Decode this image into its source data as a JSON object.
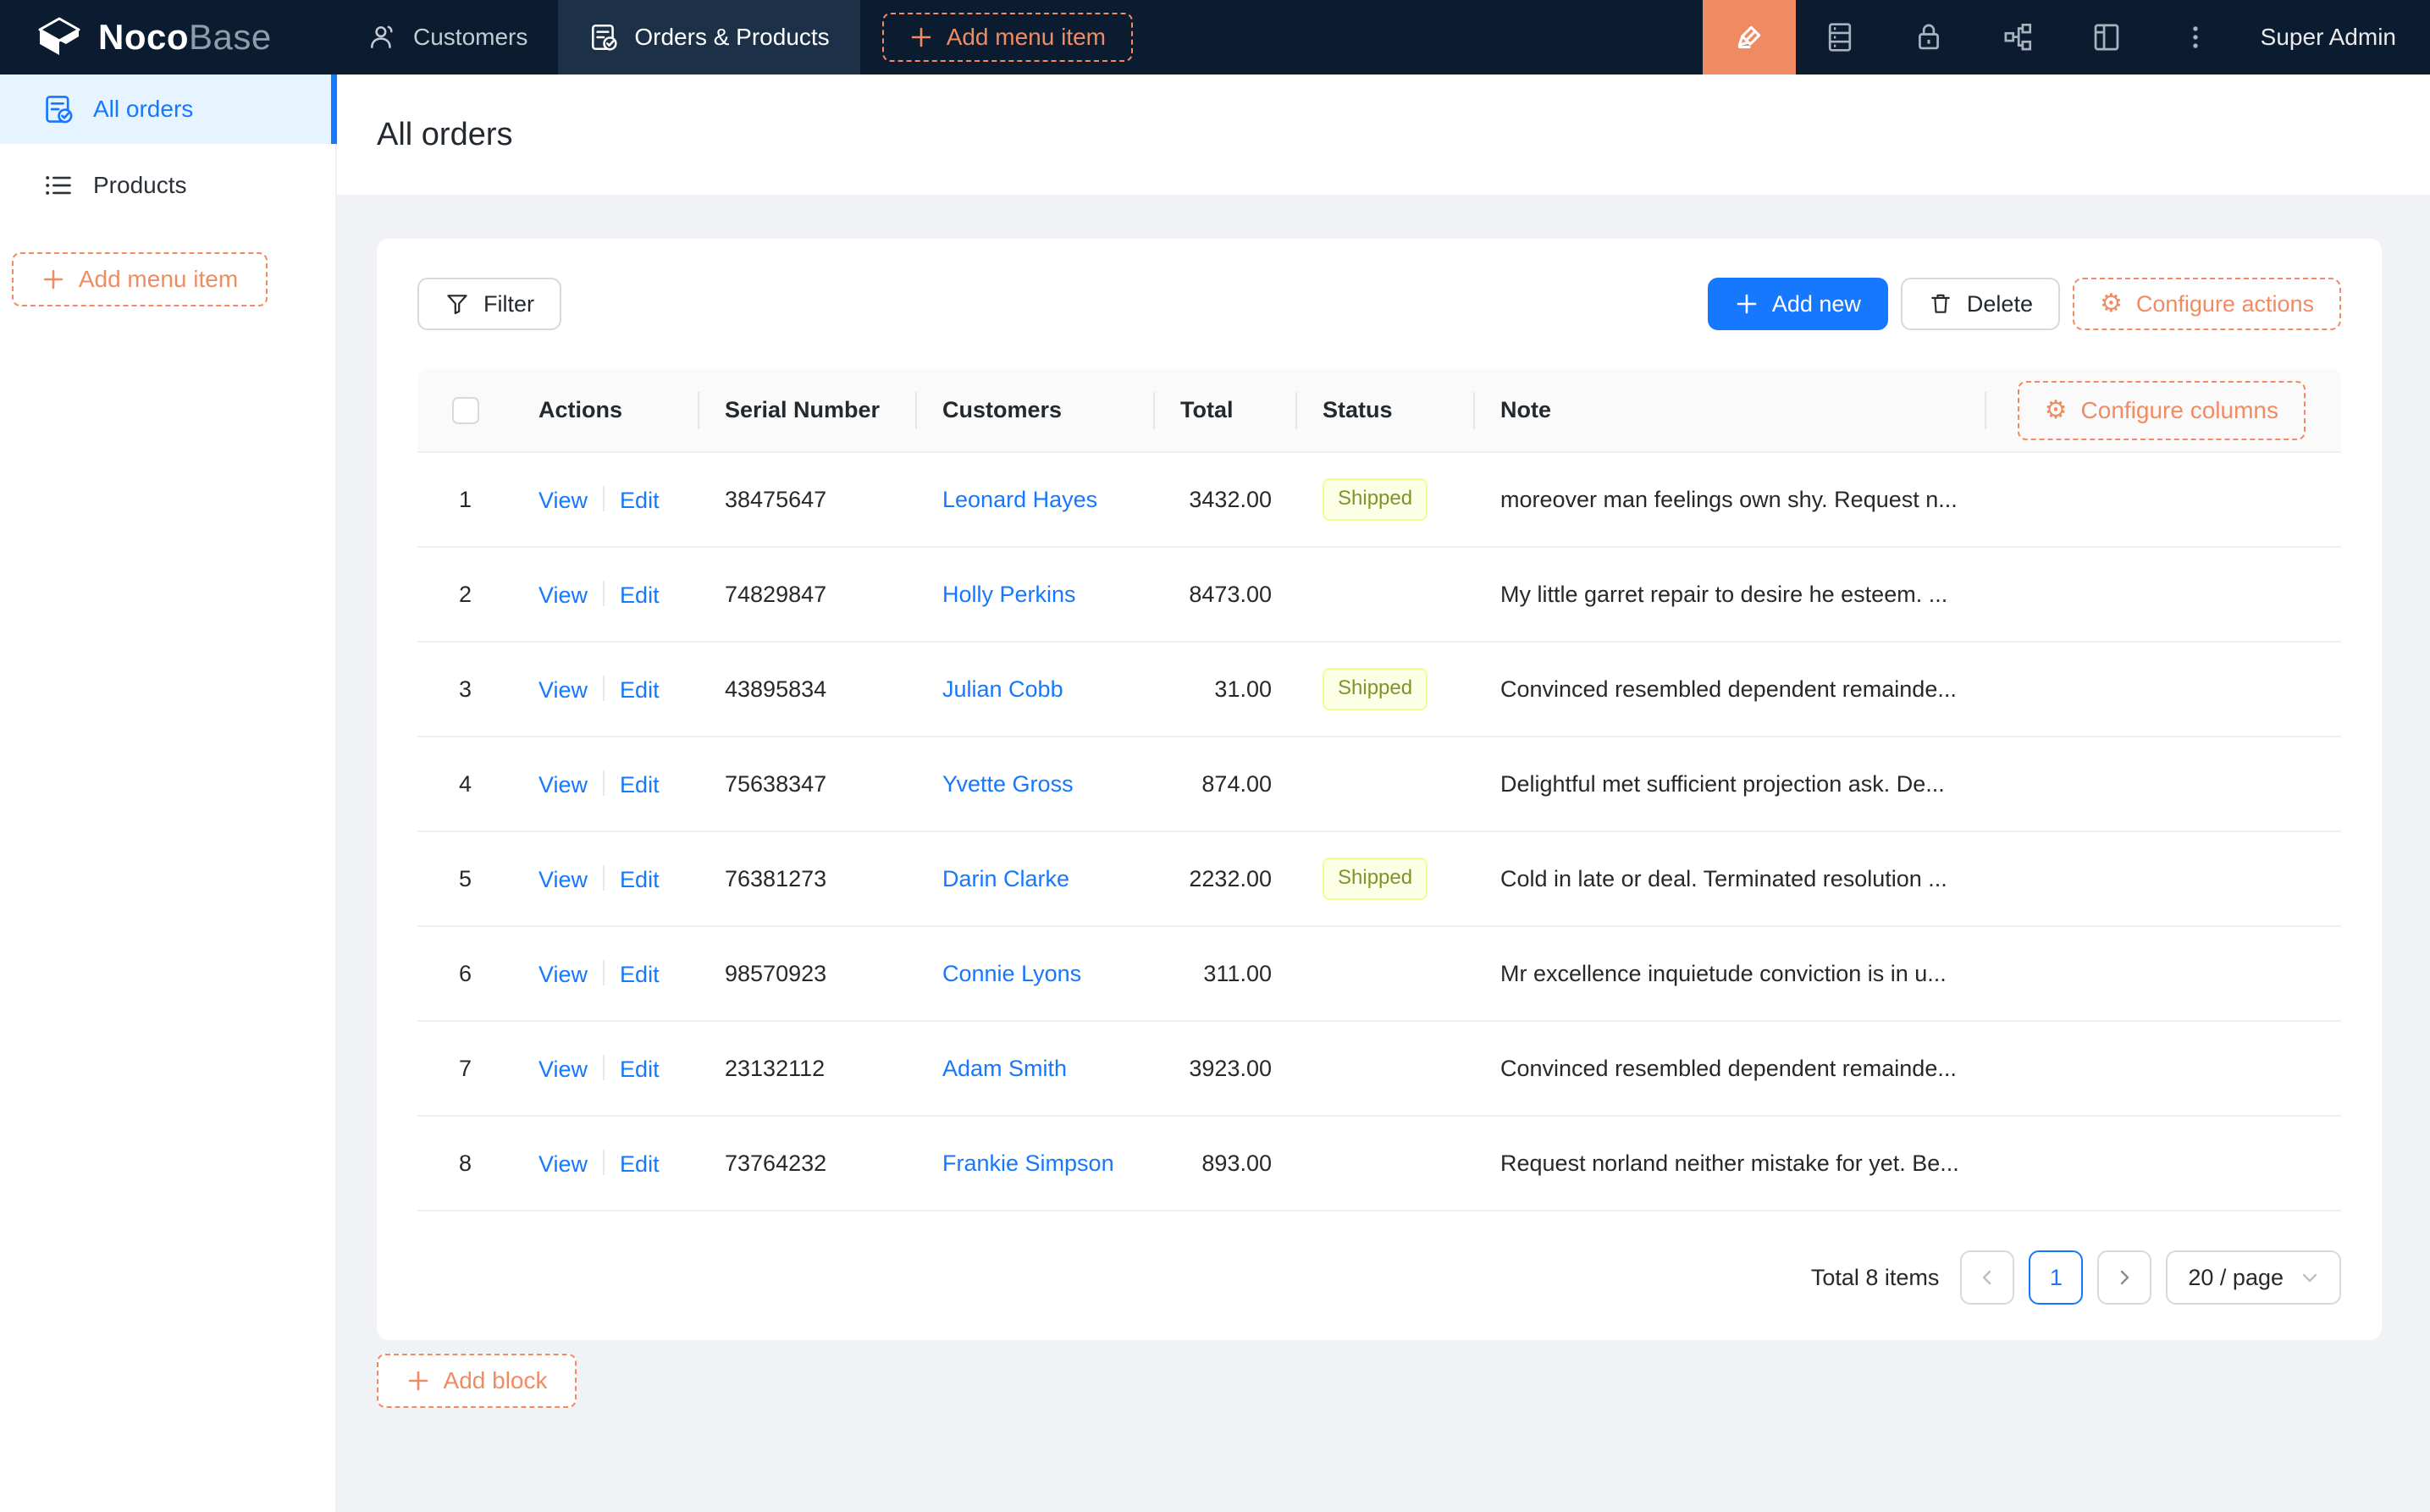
{
  "colors": {
    "navy": "#0b1c30",
    "accent_orange": "#f18b62",
    "pen_block": "#ef8a62",
    "blue": "#1677ff",
    "sidebar_active_bg": "#e6f4ff",
    "content_bg": "#f0f2f5",
    "shipped_bg": "#fcffe6",
    "shipped_border": "#eaff8f",
    "shipped_text": "#7f942c"
  },
  "navbar": {
    "logo_bold": "Noco",
    "logo_light": "Base",
    "tabs": [
      {
        "label": "Customers",
        "icon": "users-icon",
        "active": false
      },
      {
        "label": "Orders & Products",
        "icon": "form-check-icon",
        "active": true
      }
    ],
    "add_menu_item_label": "Add menu item",
    "right_icons": [
      "ui-editor-pen-icon",
      "collections-icon",
      "lock-icon",
      "plugins-icon",
      "layout-icon",
      "more-ellipsis-icon"
    ],
    "user_label": "Super Admin"
  },
  "sidebar": {
    "items": [
      {
        "label": "All orders",
        "icon": "form-check-icon",
        "active": true
      },
      {
        "label": "Products",
        "icon": "list-icon",
        "active": false
      }
    ],
    "add_menu_item_label": "Add menu item"
  },
  "page": {
    "title": "All orders"
  },
  "toolbar": {
    "filter_label": "Filter",
    "add_new_label": "Add new",
    "delete_label": "Delete",
    "configure_actions_label": "Configure actions"
  },
  "table": {
    "configure_columns_label": "Configure columns",
    "columns": [
      "Actions",
      "Serial Number",
      "Customers",
      "Total",
      "Status",
      "Note"
    ],
    "view_label": "View",
    "edit_label": "Edit",
    "rows": [
      {
        "index": 1,
        "serial": "38475647",
        "customer": "Leonard Hayes",
        "total": "3432.00",
        "status": "Shipped",
        "note": "moreover man feelings own shy. Request n..."
      },
      {
        "index": 2,
        "serial": "74829847",
        "customer": "Holly Perkins",
        "total": "8473.00",
        "status": "",
        "note": "My little garret repair to desire he esteem. ..."
      },
      {
        "index": 3,
        "serial": "43895834",
        "customer": "Julian Cobb",
        "total": "31.00",
        "status": "Shipped",
        "note": "Convinced resembled dependent remainde..."
      },
      {
        "index": 4,
        "serial": "75638347",
        "customer": "Yvette Gross",
        "total": "874.00",
        "status": "",
        "note": "Delightful met sufficient projection ask. De..."
      },
      {
        "index": 5,
        "serial": "76381273",
        "customer": "Darin Clarke",
        "total": "2232.00",
        "status": "Shipped",
        "note": "Cold in late or deal. Terminated resolution ..."
      },
      {
        "index": 6,
        "serial": "98570923",
        "customer": "Connie Lyons",
        "total": "311.00",
        "status": "",
        "note": "Mr excellence inquietude conviction is in u..."
      },
      {
        "index": 7,
        "serial": "23132112",
        "customer": "Adam Smith",
        "total": "3923.00",
        "status": "",
        "note": "Convinced resembled dependent remainde..."
      },
      {
        "index": 8,
        "serial": "73764232",
        "customer": "Frankie Simpson",
        "total": "893.00",
        "status": "",
        "note": "Request norland neither mistake for yet. Be..."
      }
    ]
  },
  "pagination": {
    "total_text": "Total 8 items",
    "current_page": "1",
    "page_size_text": "20 / page"
  },
  "footer": {
    "add_block_label": "Add block"
  }
}
